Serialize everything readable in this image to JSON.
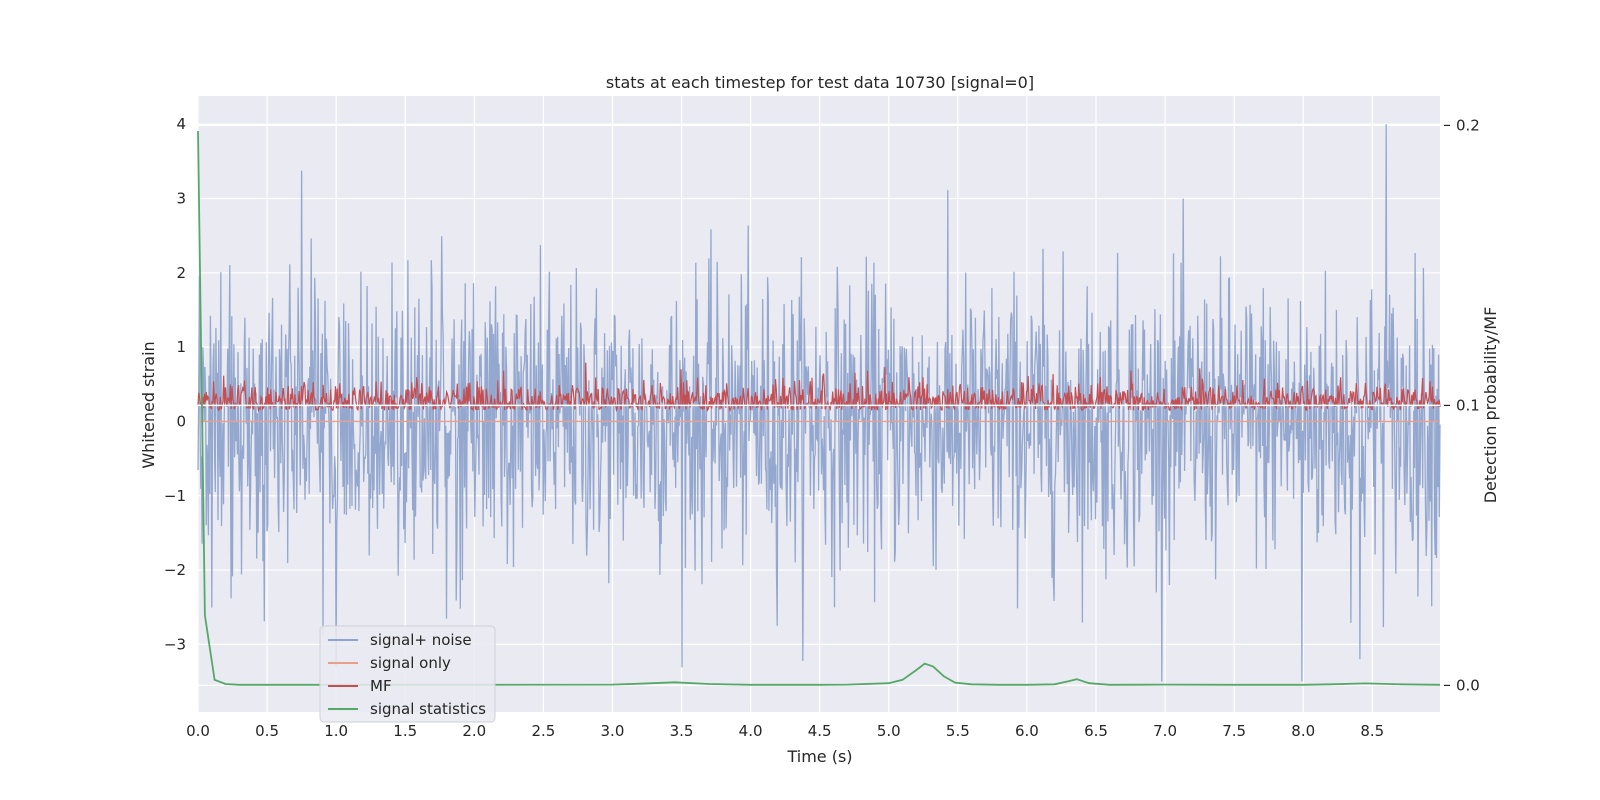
{
  "chart_data": {
    "type": "line",
    "title": "stats at each timestep for test data 10730 [signal=0]",
    "xlabel": "Time (s)",
    "ylabel": "Whitened strain",
    "y2label": "Detection probability/MF",
    "xlim": [
      0,
      8.99
    ],
    "ylim": [
      -3.91,
      4.38
    ],
    "y2lim": [
      -0.0095,
      0.2105
    ],
    "x_ticks": [
      "0.0",
      "0.5",
      "1.0",
      "1.5",
      "2.0",
      "2.5",
      "3.0",
      "3.5",
      "4.0",
      "4.5",
      "5.0",
      "5.5",
      "6.0",
      "6.5",
      "7.0",
      "7.5",
      "8.0",
      "8.5"
    ],
    "y_ticks": [
      "4",
      "3",
      "2",
      "1",
      "0",
      "−1",
      "−2",
      "−3"
    ],
    "y2_ticks": [
      "0.2",
      "0.1",
      "0.0"
    ],
    "grid": true,
    "legend_position": "lower-left",
    "series": [
      {
        "name": "signal+ noise",
        "axis": "left",
        "color": "#8fa4cc",
        "description_kind": "noise",
        "amplitude_std": 1.0,
        "range": [
          -3.5,
          4.0
        ],
        "notable_peaks": [
          {
            "x": 8.6,
            "y": 4.0
          },
          {
            "x": 7.99,
            "y": -3.5
          },
          {
            "x": 1.0,
            "y": -3.3
          },
          {
            "x": 8.41,
            "y": -3.2
          }
        ]
      },
      {
        "name": "signal only",
        "axis": "left",
        "color": "#e8a08a",
        "constant": 0.0
      },
      {
        "name": "MF",
        "axis": "left",
        "color": "#c44e52",
        "description_kind": "noise",
        "baseline": 0.15,
        "range": [
          0.0,
          0.95
        ]
      },
      {
        "name": "signal statistics",
        "axis": "right",
        "color": "#55a868",
        "x": [
          0.0,
          0.05,
          0.12,
          0.2,
          0.3,
          1.0,
          2.0,
          3.0,
          3.2,
          3.45,
          3.7,
          4.0,
          4.5,
          4.7,
          5.0,
          5.1,
          5.2,
          5.26,
          5.32,
          5.4,
          5.48,
          5.6,
          5.8,
          6.0,
          6.2,
          6.3,
          6.36,
          6.45,
          6.6,
          7.0,
          7.5,
          8.0,
          8.2,
          8.45,
          8.7,
          8.99
        ],
        "values": [
          0.198,
          0.025,
          0.002,
          0.0005,
          0.0002,
          0.0002,
          0.0002,
          0.0003,
          0.0006,
          0.0011,
          0.0005,
          0.0002,
          0.0002,
          0.0003,
          0.0008,
          0.002,
          0.0055,
          0.0078,
          0.0068,
          0.0032,
          0.001,
          0.0004,
          0.0002,
          0.0002,
          0.0004,
          0.0015,
          0.0022,
          0.0008,
          0.0002,
          0.0003,
          0.0002,
          0.0002,
          0.0004,
          0.0007,
          0.0004,
          0.0002
        ]
      }
    ]
  }
}
